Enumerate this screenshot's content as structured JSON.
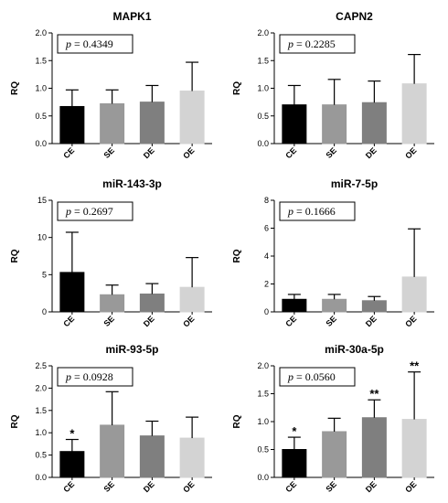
{
  "chart_data": [
    {
      "type": "bar",
      "title": "MAPK1",
      "ylabel": "RQ",
      "categories": [
        "CE",
        "SE",
        "DE",
        "OE"
      ],
      "values": [
        0.67,
        0.72,
        0.75,
        0.95
      ],
      "errors": [
        0.3,
        0.25,
        0.3,
        0.52
      ],
      "ylim": [
        0,
        2.0
      ],
      "yticks": [
        "0.0",
        "0.5",
        "1.0",
        "1.5",
        "2.0"
      ],
      "ytick_values": [
        0,
        0.5,
        1.0,
        1.5,
        2.0
      ],
      "p_label": "p",
      "p_value": "= 0.4349",
      "significance": [
        "",
        "",
        "",
        ""
      ],
      "colors": [
        "#000000",
        "#999999",
        "#7f7f7f",
        "#d3d3d3"
      ]
    },
    {
      "type": "bar",
      "title": "CAPN2",
      "ylabel": "RQ",
      "categories": [
        "CE",
        "SE",
        "DE",
        "OE"
      ],
      "values": [
        0.7,
        0.7,
        0.74,
        1.08
      ],
      "errors": [
        0.35,
        0.46,
        0.39,
        0.53
      ],
      "ylim": [
        0,
        2.0
      ],
      "yticks": [
        "0.0",
        "0.5",
        "1.0",
        "1.5",
        "2.0"
      ],
      "ytick_values": [
        0,
        0.5,
        1.0,
        1.5,
        2.0
      ],
      "p_label": "p",
      "p_value": "= 0.2285",
      "significance": [
        "",
        "",
        "",
        ""
      ],
      "colors": [
        "#000000",
        "#999999",
        "#7f7f7f",
        "#d3d3d3"
      ]
    },
    {
      "type": "bar",
      "title": "miR-143-3p",
      "ylabel": "RQ",
      "categories": [
        "CE",
        "SE",
        "DE",
        "OE"
      ],
      "values": [
        5.3,
        2.3,
        2.4,
        3.3
      ],
      "errors": [
        5.4,
        1.3,
        1.4,
        4.0
      ],
      "ylim": [
        0,
        15
      ],
      "yticks": [
        "0",
        "5",
        "10",
        "15"
      ],
      "ytick_values": [
        0,
        5,
        10,
        15
      ],
      "p_label": "p",
      "p_value": "= 0.2697",
      "significance": [
        "",
        "",
        "",
        ""
      ],
      "colors": [
        "#000000",
        "#999999",
        "#7f7f7f",
        "#d3d3d3"
      ]
    },
    {
      "type": "bar",
      "title": "miR-7-5p",
      "ylabel": "RQ",
      "categories": [
        "CE",
        "SE",
        "DE",
        "OE"
      ],
      "values": [
        0.9,
        0.9,
        0.8,
        2.5
      ],
      "errors": [
        0.35,
        0.35,
        0.3,
        3.45
      ],
      "ylim": [
        0,
        8
      ],
      "yticks": [
        "0",
        "2",
        "4",
        "6",
        "8"
      ],
      "ytick_values": [
        0,
        2,
        4,
        6,
        8
      ],
      "p_label": "p",
      "p_value": "= 0.1666",
      "significance": [
        "",
        "",
        "",
        ""
      ],
      "colors": [
        "#000000",
        "#999999",
        "#7f7f7f",
        "#d3d3d3"
      ]
    },
    {
      "type": "bar",
      "title": "miR-93-5p",
      "ylabel": "RQ",
      "categories": [
        "CE",
        "SE",
        "DE",
        "OE"
      ],
      "values": [
        0.58,
        1.17,
        0.93,
        0.88
      ],
      "errors": [
        0.27,
        0.75,
        0.33,
        0.47
      ],
      "ylim": [
        0,
        2.5
      ],
      "yticks": [
        "0.0",
        "0.5",
        "1.0",
        "1.5",
        "2.0",
        "2.5"
      ],
      "ytick_values": [
        0,
        0.5,
        1.0,
        1.5,
        2.0,
        2.5
      ],
      "p_label": "p",
      "p_value": "= 0.0928",
      "significance": [
        "*",
        "**",
        "",
        ""
      ],
      "colors": [
        "#000000",
        "#999999",
        "#7f7f7f",
        "#d3d3d3"
      ]
    },
    {
      "type": "bar",
      "title": "miR-30a-5p",
      "ylabel": "RQ",
      "categories": [
        "CE",
        "SE",
        "DE",
        "OE"
      ],
      "values": [
        0.5,
        0.82,
        1.07,
        1.04
      ],
      "errors": [
        0.22,
        0.24,
        0.32,
        0.85
      ],
      "ylim": [
        0,
        2.0
      ],
      "yticks": [
        "0.0",
        "0.5",
        "1.0",
        "1.5",
        "2.0"
      ],
      "ytick_values": [
        0,
        0.5,
        1.0,
        1.5,
        2.0
      ],
      "p_label": "p",
      "p_value": "= 0.0560",
      "significance": [
        "*",
        "",
        "**",
        "**"
      ],
      "colors": [
        "#000000",
        "#999999",
        "#7f7f7f",
        "#d3d3d3"
      ]
    }
  ]
}
